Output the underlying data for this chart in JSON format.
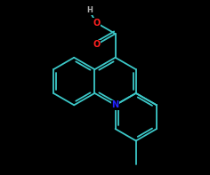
{
  "background_color": "#000000",
  "bond_color": "#3cc8c8",
  "bond_width": 1.3,
  "atom_colors": {
    "N": "#2222ff",
    "O": "#ff2020",
    "H": "#b0b0b0"
  },
  "figsize": [
    2.36,
    1.97
  ],
  "dpi": 100
}
